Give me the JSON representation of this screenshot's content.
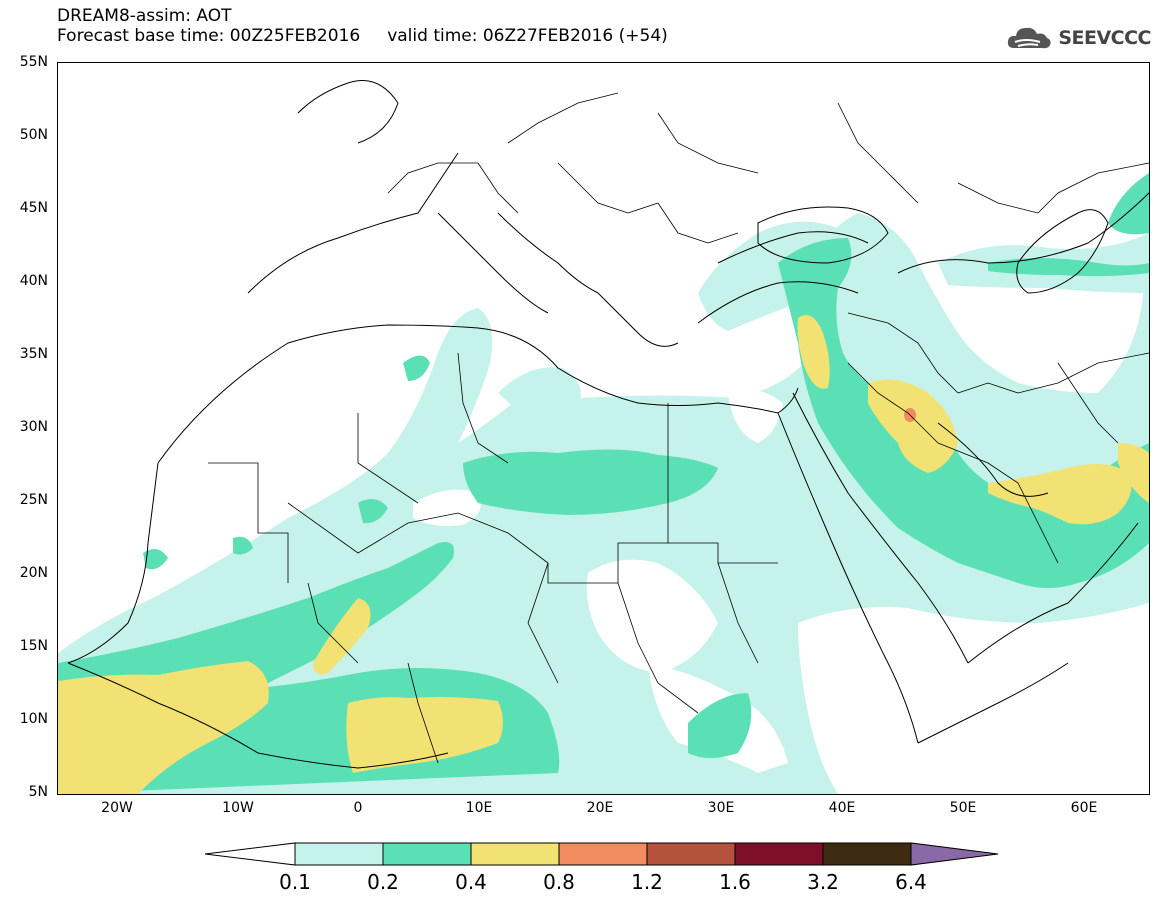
{
  "header": {
    "line1": "DREAM8-assim: AOT",
    "base_time": "Forecast base time: 00Z25FEB2016",
    "valid_time": "valid time: 06Z27FEB2016 (+54)"
  },
  "logo": {
    "text": "SEEVCCC",
    "icon": "cloud-icon"
  },
  "map": {
    "lat_labels": [
      "55N",
      "50N",
      "45N",
      "40N",
      "35N",
      "30N",
      "25N",
      "20N",
      "15N",
      "10N",
      "5N"
    ],
    "lon_labels": [
      "20W",
      "10W",
      "0",
      "10E",
      "20E",
      "30E",
      "40E",
      "50E",
      "60E"
    ]
  },
  "colorbar": {
    "labels": [
      "0.1",
      "0.2",
      "0.4",
      "0.8",
      "1.2",
      "1.6",
      "3.2",
      "6.4"
    ],
    "colors": [
      "#c6f2ec",
      "#5bdfb4",
      "#f2e273",
      "#f08c60",
      "#b5523e",
      "#7e0f28",
      "#3f2b14",
      "#8a6aa6"
    ]
  },
  "colors": {
    "aot_0_1": "#c6f2ec",
    "aot_0_2": "#5bdfb4",
    "aot_0_4": "#f2e273",
    "aot_0_8": "#f08c60"
  }
}
